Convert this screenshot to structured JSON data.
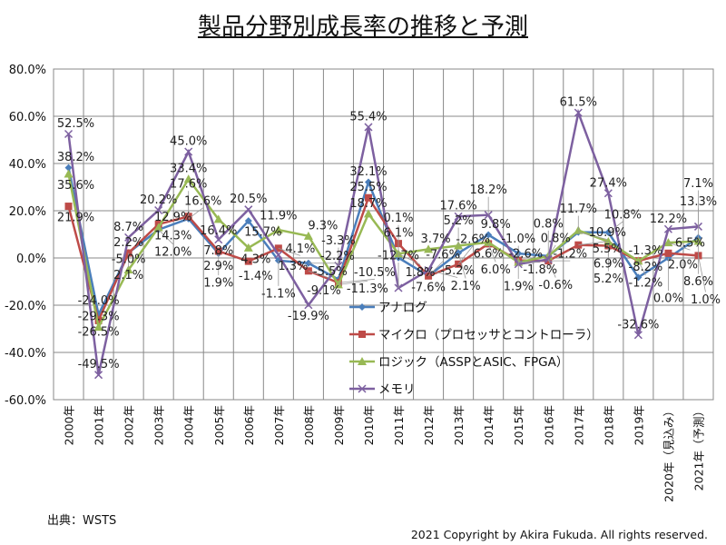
{
  "chart_data": {
    "type": "line",
    "title": "製品分野別成長率の推移と予測",
    "categories": [
      "2000年",
      "2001年",
      "2002年",
      "2003年",
      "2004年",
      "2005年",
      "2006年",
      "2007年",
      "2008年",
      "2009年",
      "2010年",
      "2011年",
      "2012年",
      "2013年",
      "2014年",
      "2015年",
      "2016年",
      "2017年",
      "2018年",
      "2019年",
      "2020年（見込み）",
      "2021年（予測）"
    ],
    "ylim": [
      -60,
      80
    ],
    "yticks": [
      -60,
      -40,
      -20,
      0,
      20,
      40,
      60,
      80
    ],
    "ytick_labels": [
      "-60.0%",
      "-40.0%",
      "-20.0%",
      "0.0%",
      "20.0%",
      "40.0%",
      "60.0%",
      "80.0%"
    ],
    "grid": true,
    "legend_position": "inside-bottom-center",
    "series": [
      {
        "name": "アナログ",
        "color": "#4a7ebb",
        "marker": "diamond",
        "values": [
          38.2,
          -24.0,
          2.2,
          12.0,
          16.6,
          1.9,
          15.7,
          -1.1,
          -2.2,
          -9.1,
          32.1,
          0.1,
          -7.6,
          2.1,
          9.8,
          1.9,
          0.8,
          10.9,
          10.8,
          -8.2,
          0.0,
          8.6
        ]
      },
      {
        "name": "マイクロ（プロセッサとコントローラ）",
        "color": "#be4b48",
        "marker": "square",
        "values": [
          21.9,
          -26.5,
          2.1,
          14.3,
          17.6,
          2.9,
          -1.4,
          4.1,
          -5.5,
          -10.5,
          25.5,
          6.1,
          -7.6,
          -2.6,
          6.0,
          -1.0,
          -1.2,
          5.5,
          5.2,
          -1.2,
          2.0,
          1.0
        ]
      },
      {
        "name": "ロジック（ASSPとASIC、FPGA）",
        "color": "#98b954",
        "marker": "triangle",
        "values": [
          35.6,
          -29.3,
          -5.0,
          12.9,
          33.4,
          16.4,
          4.3,
          11.9,
          9.3,
          -11.3,
          18.7,
          1.8,
          3.7,
          5.2,
          6.6,
          -1.8,
          0.8,
          11.7,
          6.9,
          -1.3,
          6.5,
          7.1
        ]
      },
      {
        "name": "メモリ",
        "color": "#7d60a0",
        "marker": "x",
        "values": [
          52.5,
          -49.5,
          8.7,
          20.2,
          45.0,
          7.8,
          20.5,
          1.3,
          -19.9,
          -3.3,
          55.4,
          -12.7,
          -5.2,
          17.6,
          18.2,
          -2.6,
          -0.6,
          61.5,
          27.4,
          -32.6,
          12.2,
          13.3
        ]
      }
    ]
  },
  "footer": {
    "source": "出典：WSTS",
    "copyright": "2021 Copyright by Akira Fukuda. All rights reserved."
  }
}
